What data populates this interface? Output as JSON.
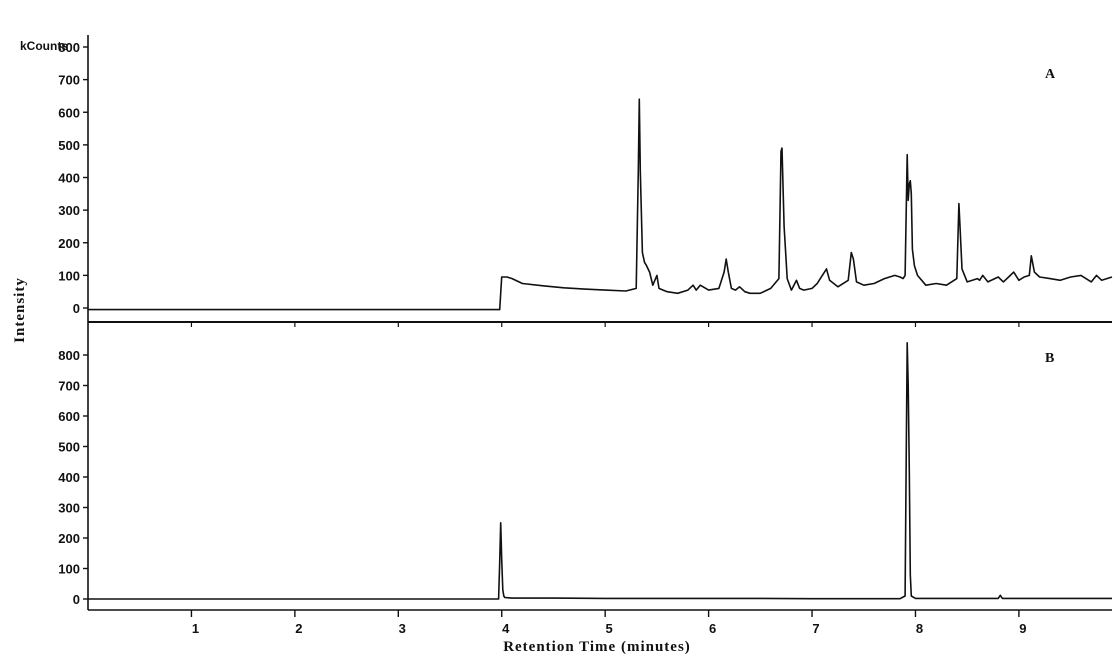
{
  "chart_data": {
    "type": "line",
    "y_unit_label": "kCounts",
    "ylabel": "Intensity",
    "xlabel": "Retention Time (minutes)",
    "xlim": [
      0,
      9.9
    ],
    "x_ticks": [
      1,
      2,
      3,
      4,
      5,
      6,
      7,
      8,
      9
    ],
    "x_tick_labels": [
      "1",
      "2",
      "3",
      "4",
      "5",
      "6",
      "7",
      "8",
      "9"
    ],
    "panels": [
      {
        "label": "A",
        "ylim": [
          -40,
          900
        ],
        "y_ticks": [
          0,
          100,
          200,
          300,
          400,
          500,
          600,
          700,
          800
        ],
        "y_tick_labels": [
          "0",
          "100",
          "200",
          "300",
          "400",
          "500",
          "600",
          "700",
          "800"
        ],
        "series": [
          {
            "x": [
              0.0,
              3.98,
              4.0,
              4.05,
              4.1,
              4.2,
              4.4,
              4.6,
              4.8,
              5.0,
              5.2,
              5.3,
              5.32,
              5.33,
              5.34,
              5.36,
              5.38,
              5.4,
              5.43,
              5.46,
              5.5,
              5.52,
              5.56,
              5.6,
              5.7,
              5.8,
              5.85,
              5.88,
              5.92,
              6.0,
              6.1,
              6.15,
              6.17,
              6.19,
              6.22,
              6.26,
              6.3,
              6.35,
              6.4,
              6.5,
              6.6,
              6.68,
              6.7,
              6.71,
              6.73,
              6.76,
              6.8,
              6.85,
              6.88,
              6.92,
              7.0,
              7.05,
              7.08,
              7.12,
              7.14,
              7.17,
              7.25,
              7.35,
              7.38,
              7.4,
              7.43,
              7.5,
              7.6,
              7.7,
              7.8,
              7.85,
              7.88,
              7.9,
              7.92,
              7.93,
              7.94,
              7.95,
              7.96,
              7.97,
              7.99,
              8.02,
              8.06,
              8.1,
              8.2,
              8.3,
              8.4,
              8.42,
              8.43,
              8.45,
              8.5,
              8.6,
              8.62,
              8.65,
              8.7,
              8.8,
              8.85,
              8.9,
              8.95,
              9.0,
              9.05,
              9.1,
              9.12,
              9.15,
              9.2,
              9.3,
              9.4,
              9.5,
              9.6,
              9.7,
              9.75,
              9.8,
              9.9
            ],
            "y": [
              -5,
              -5,
              95,
              95,
              90,
              75,
              68,
              62,
              58,
              55,
              52,
              60,
              420,
              640,
              420,
              170,
              140,
              130,
              110,
              70,
              100,
              60,
              55,
              50,
              45,
              55,
              70,
              55,
              70,
              55,
              60,
              110,
              150,
              110,
              60,
              55,
              65,
              50,
              45,
              45,
              60,
              90,
              480,
              490,
              250,
              90,
              55,
              85,
              60,
              55,
              60,
              75,
              90,
              110,
              120,
              85,
              65,
              85,
              170,
              150,
              80,
              70,
              75,
              90,
              100,
              95,
              90,
              100,
              470,
              330,
              380,
              390,
              350,
              180,
              130,
              100,
              85,
              70,
              75,
              70,
              90,
              320,
              250,
              120,
              80,
              90,
              85,
              100,
              80,
              95,
              80,
              95,
              110,
              85,
              95,
              100,
              160,
              110,
              95,
              90,
              85,
              95,
              100,
              80,
              100,
              85,
              95
            ]
          }
        ]
      },
      {
        "label": "B",
        "ylim": [
          -40,
          900
        ],
        "y_ticks": [
          0,
          100,
          200,
          300,
          400,
          500,
          600,
          700,
          800
        ],
        "y_tick_labels": [
          "0",
          "100",
          "200",
          "300",
          "400",
          "500",
          "600",
          "700",
          "800"
        ],
        "series": [
          {
            "x": [
              0.0,
              3.97,
              3.98,
              3.99,
              4.0,
              4.01,
              4.02,
              4.03,
              4.1,
              4.5,
              5.0,
              5.5,
              6.0,
              6.5,
              7.0,
              7.5,
              7.85,
              7.9,
              7.91,
              7.92,
              7.93,
              7.94,
              7.95,
              7.96,
              8.0,
              8.5,
              8.8,
              8.82,
              8.84,
              9.0,
              9.5,
              9.9
            ],
            "y": [
              0,
              0,
              120,
              250,
              130,
              30,
              10,
              5,
              3,
              3,
              2,
              2,
              2,
              2,
              1,
              1,
              1,
              10,
              460,
              840,
              700,
              420,
              80,
              10,
              2,
              2,
              2,
              12,
              2,
              2,
              2,
              2
            ]
          }
        ]
      }
    ]
  }
}
